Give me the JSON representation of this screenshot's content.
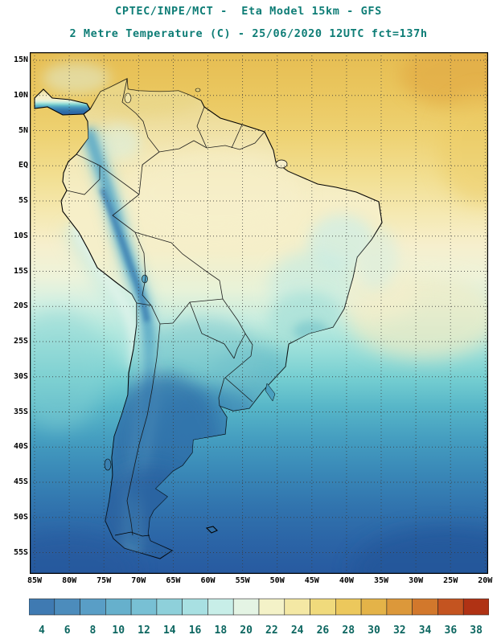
{
  "header": {
    "line1": "CPTEC/INPE/MCT -  Eta Model 15km - GFS",
    "line2": "2 Metre Temperature (C) - 25/06/2020 12UTC fct=137h",
    "title_color": "#0e7d76"
  },
  "axes": {
    "lat_labels": [
      "15N",
      "10N",
      "5N",
      "EQ",
      "5S",
      "10S",
      "15S",
      "20S",
      "25S",
      "30S",
      "35S",
      "40S",
      "45S",
      "50S",
      "55S"
    ],
    "lon_labels": [
      "85W",
      "80W",
      "75W",
      "70W",
      "65W",
      "60W",
      "55W",
      "50W",
      "45W",
      "40W",
      "35W",
      "30W",
      "25W",
      "20W"
    ]
  },
  "colorbar": {
    "unit": "C",
    "values": [
      4,
      6,
      8,
      10,
      12,
      14,
      16,
      18,
      20,
      22,
      24,
      26,
      28,
      30,
      32,
      34,
      36,
      38
    ],
    "colors": [
      "#3f7ab2",
      "#4c8cbc",
      "#599ec6",
      "#66b0cc",
      "#78c0d4",
      "#8ed0da",
      "#a8e0e2",
      "#c8eee8",
      "#e4f4e4",
      "#f4f2c8",
      "#f4e8a4",
      "#f0da7c",
      "#ecc85c",
      "#e4b348",
      "#dc983a",
      "#d2782c",
      "#c45420",
      "#b03214"
    ],
    "label_color": "#0c6660"
  },
  "chart_data": {
    "type": "heatmap",
    "title": "2 Metre Temperature (C) - 25/06/2020 12UTC fct=137h",
    "model": "Eta Model 15km - GFS",
    "source": "CPTEC/INPE/MCT",
    "valid_time": "25/06/2020 12UTC",
    "forecast": "fct=137h",
    "lon_range": [
      "85W",
      "20W"
    ],
    "lat_range": [
      "15N",
      "55S"
    ],
    "legend_levels_c": [
      4,
      6,
      8,
      10,
      12,
      14,
      16,
      18,
      20,
      22,
      24,
      26,
      28,
      30,
      32,
      34,
      36,
      38
    ],
    "field_summary": [
      {
        "region": "Tropical Atlantic / Caribbean (north of EQ)",
        "approx_temp_c": "24-30"
      },
      {
        "region": "Northern South America / Amazon basin",
        "approx_temp_c": "20-26"
      },
      {
        "region": "Northeast Brazil interior",
        "approx_temp_c": "16-22"
      },
      {
        "region": "Andes cordillera",
        "approx_temp_c": "4-14"
      },
      {
        "region": "Southeast Brazil highlands",
        "approx_temp_c": "12-18"
      },
      {
        "region": "Paraguay / Northern Argentina",
        "approx_temp_c": "10-16"
      },
      {
        "region": "Pampas / Patagonia / southern Chile",
        "approx_temp_c": "4-10"
      },
      {
        "region": "South Atlantic (45S-55S)",
        "approx_temp_c": "4-8"
      },
      {
        "region": "Peru coastal Pacific (Humboldt band)",
        "approx_temp_c": "14-18"
      }
    ]
  }
}
